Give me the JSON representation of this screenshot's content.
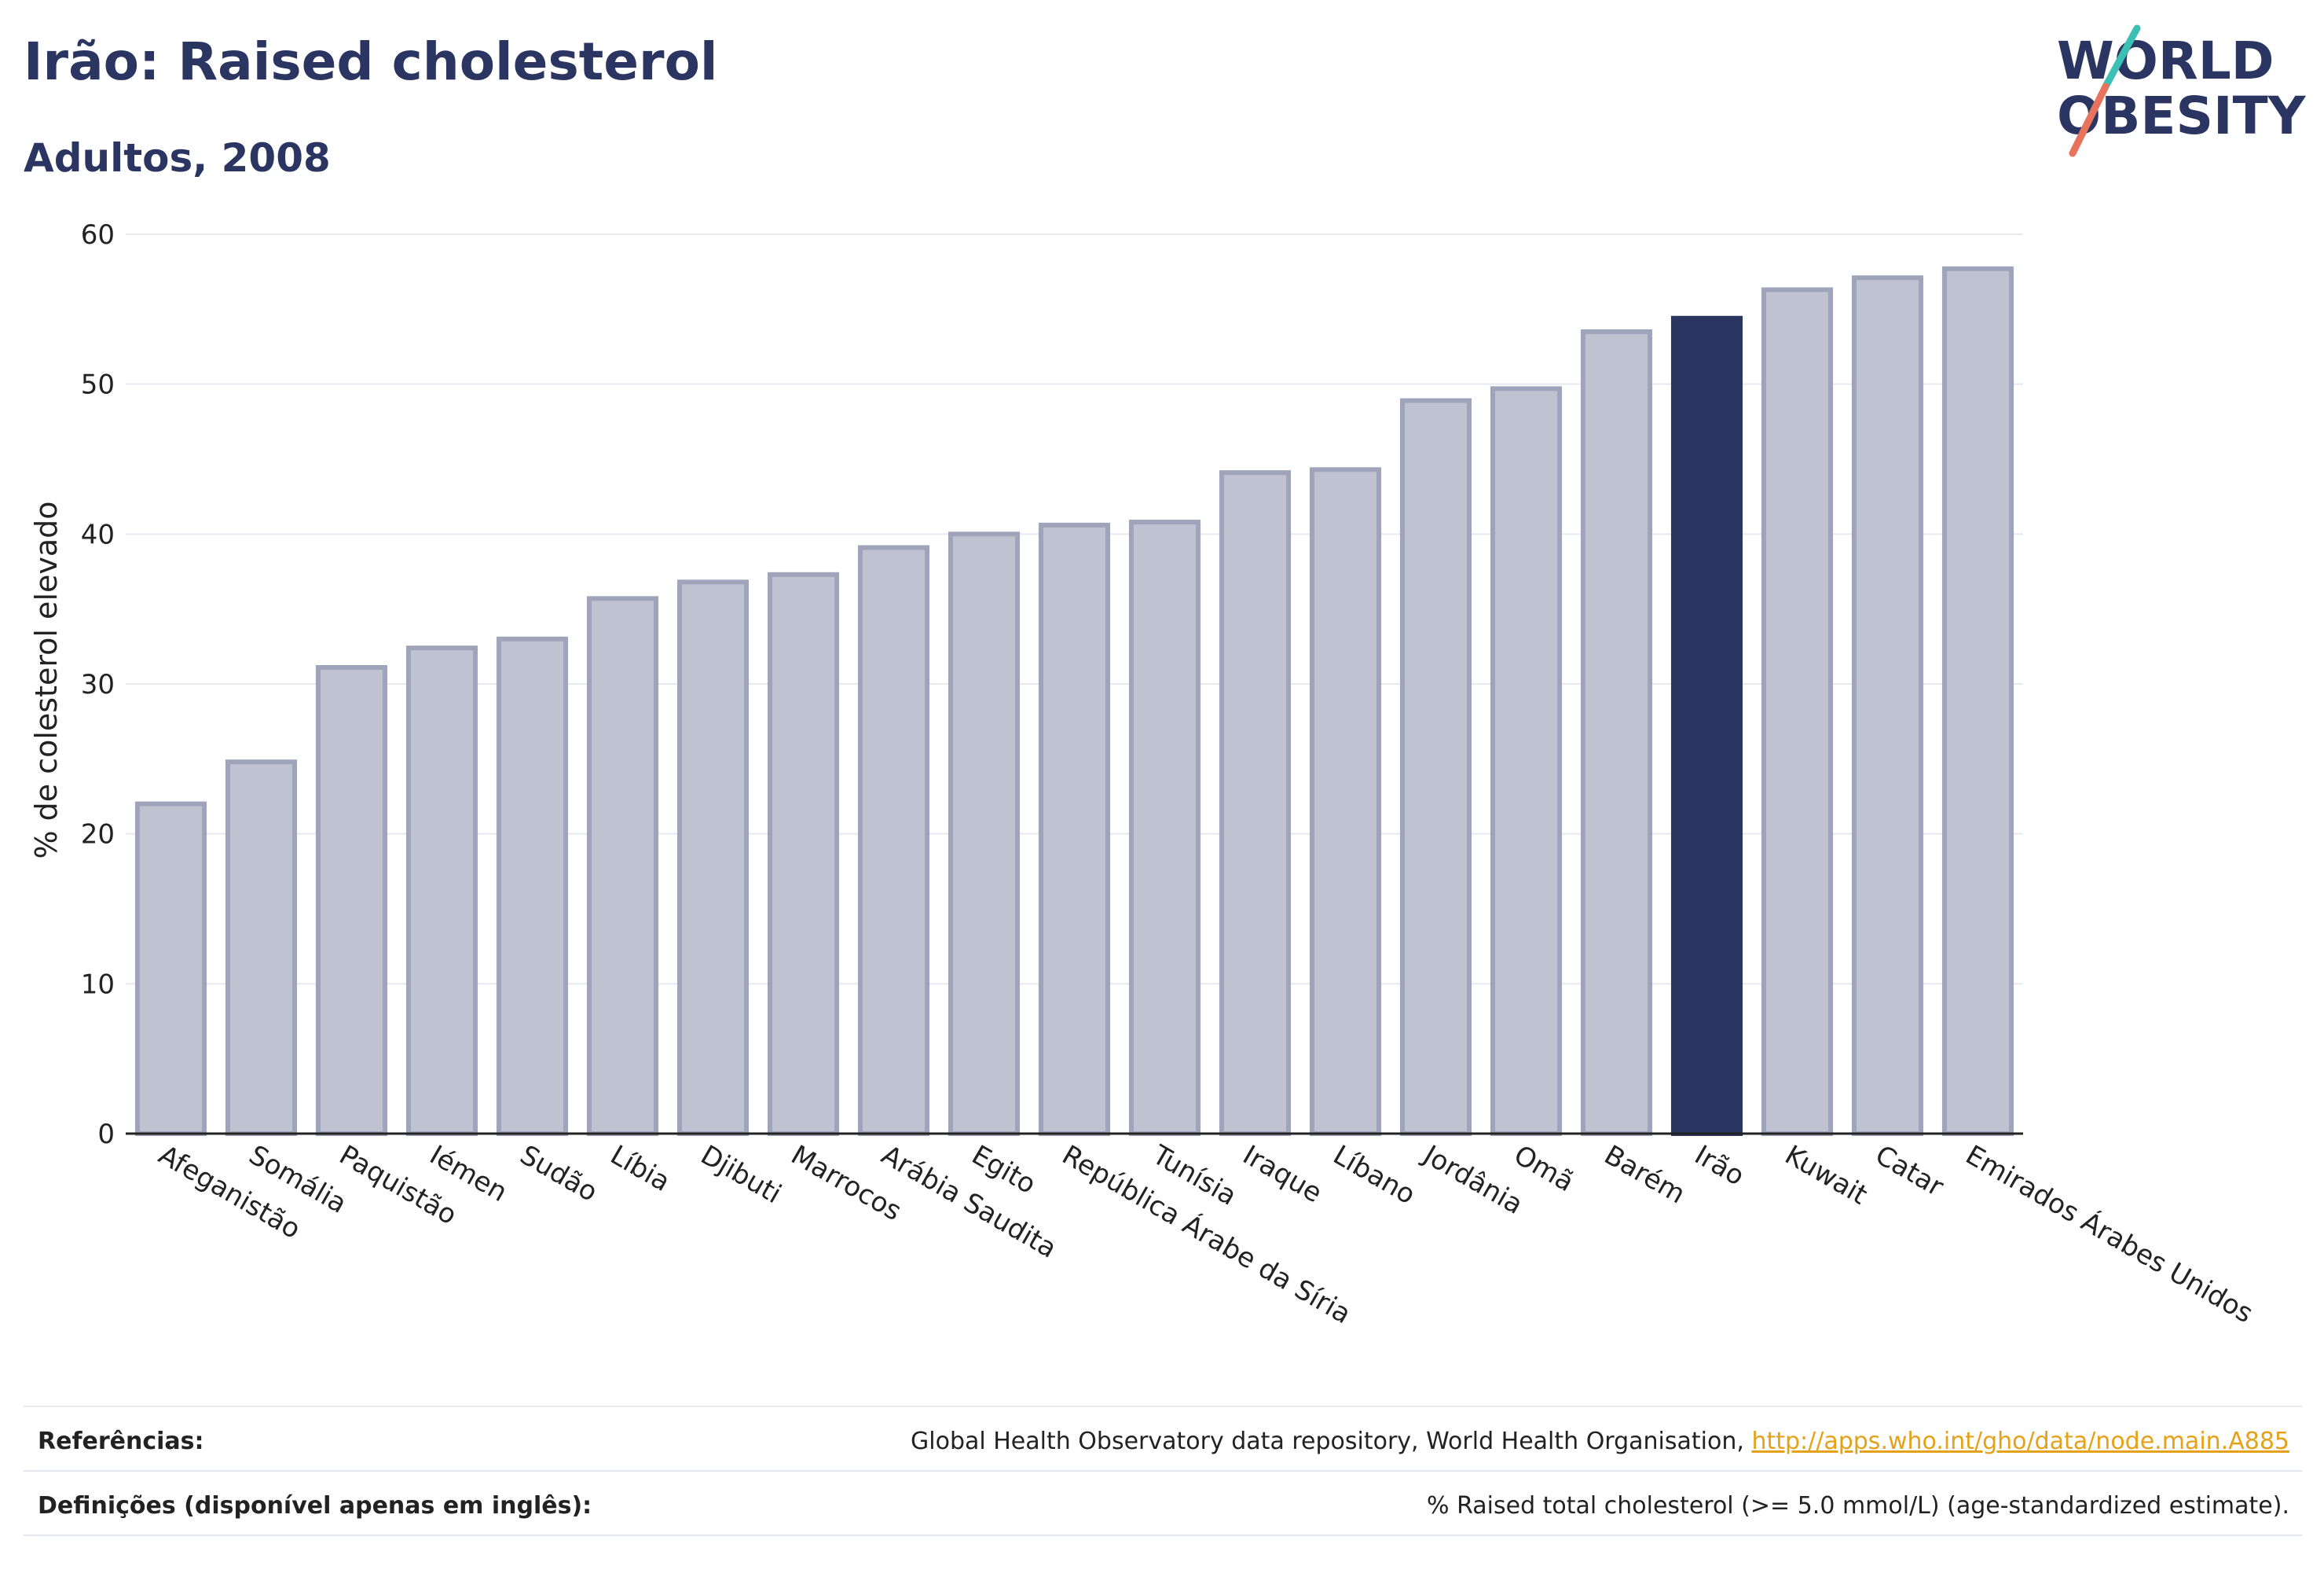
{
  "header": {
    "title": "Irão: Raised cholesterol",
    "subtitle": "Adultos, 2008"
  },
  "logo": {
    "line1": "WORLD",
    "line2": "OBESITY",
    "colors": [
      "#2b3561",
      "#3cbfb4",
      "#e8725c"
    ]
  },
  "chart_data": {
    "type": "bar",
    "ylabel": "% de colesterol elevado",
    "ylim": [
      0,
      60
    ],
    "yticks": [
      0,
      10,
      20,
      30,
      40,
      50,
      60
    ],
    "grid": true,
    "categories": [
      "Afeganistão",
      "Somália",
      "Paquistão",
      "Iémen",
      "Sudão",
      "Líbia",
      "Djibuti",
      "Marrocos",
      "Arábia Saudita",
      "Egito",
      "República Árabe da Síria",
      "Tunísia",
      "Iraque",
      "Líbano",
      "Jordânia",
      "Omã",
      "Barém",
      "Irão",
      "Kuwait",
      "Catar",
      "Emirados Árabes Unidos"
    ],
    "values": [
      22.0,
      24.8,
      31.1,
      32.4,
      33.0,
      35.7,
      36.8,
      37.3,
      39.1,
      40.0,
      40.6,
      40.8,
      44.1,
      44.3,
      48.9,
      49.7,
      53.5,
      54.4,
      56.3,
      57.1,
      57.7
    ],
    "highlight": "Irão",
    "colors": {
      "default": "#bfc2d0",
      "default_border": "#9fa4ba",
      "highlight": "#2b3561"
    }
  },
  "footer": {
    "references_label": "Referências:",
    "references_text": "Global Health Observatory data repository, World Health Organisation, ",
    "references_link": "http://apps.who.int/gho/data/node.main.A885",
    "definitions_label": "Definições (disponível apenas em inglês):",
    "definitions_text": "% Raised total cholesterol (>= 5.0 mmol/L) (age-standardized estimate)."
  }
}
